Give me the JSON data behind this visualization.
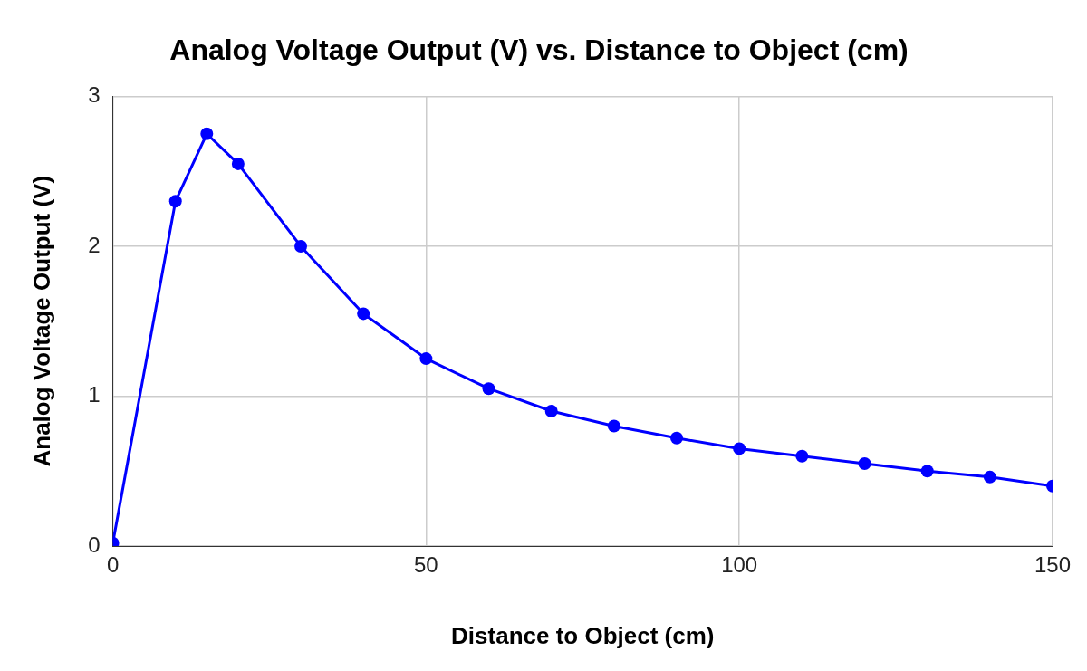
{
  "chart_data": {
    "type": "line",
    "title": "Analog Voltage Output (V) vs. Distance to Object (cm)",
    "xlabel": "Distance to Object (cm)",
    "ylabel": "Analog Voltage Output (V)",
    "x": [
      0,
      10,
      15,
      20,
      30,
      40,
      50,
      60,
      70,
      80,
      90,
      100,
      110,
      120,
      130,
      140,
      150
    ],
    "series": [
      {
        "color": "#0000ff",
        "values": [
          0.02,
          2.3,
          2.75,
          2.55,
          2.0,
          1.55,
          1.25,
          1.05,
          0.9,
          0.8,
          0.72,
          0.65,
          0.6,
          0.55,
          0.5,
          0.46,
          0.4
        ]
      }
    ],
    "xlim": [
      0,
      150
    ],
    "xticks": [
      0,
      50,
      100,
      150
    ],
    "ylim": [
      0,
      3
    ],
    "yticks": [
      0,
      1,
      2,
      3
    ],
    "grid": true,
    "legend": false,
    "marker": "circle",
    "line_style": "solid"
  }
}
